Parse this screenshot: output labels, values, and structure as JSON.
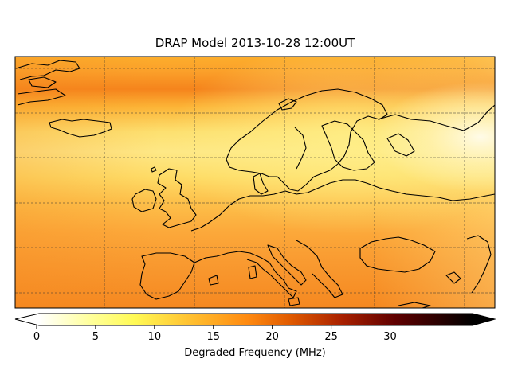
{
  "title": "DRAP Model 2013-10-28 12:00UT",
  "colorbar": {
    "label": "Degraded Frequency (MHz)",
    "ticks": [
      "0",
      "5",
      "10",
      "15",
      "20",
      "25",
      "30"
    ],
    "tick_values": [
      0,
      5,
      10,
      15,
      20,
      25,
      30
    ],
    "range": [
      0,
      37
    ],
    "extend": "both",
    "colormap": "afmhot_r"
  },
  "map": {
    "region": "Europe",
    "projection": "equirectangular",
    "gridlines": "dashed",
    "coastline_color": "#000000"
  }
}
